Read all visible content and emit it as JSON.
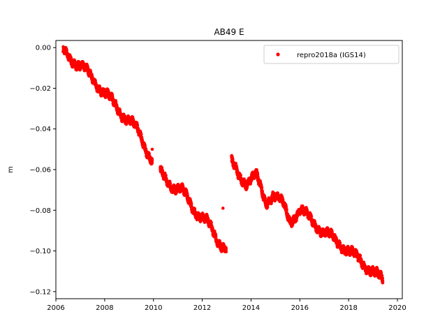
{
  "chart_data": {
    "type": "scatter",
    "title": "AB49 E",
    "xlabel": "",
    "ylabel": "m",
    "xlim": [
      2006.0,
      2020.2
    ],
    "ylim": [
      -0.1235,
      0.0035
    ],
    "xticks": [
      2006,
      2008,
      2010,
      2012,
      2014,
      2016,
      2018,
      2020
    ],
    "yticks": [
      0.0,
      -0.02,
      -0.04,
      -0.06,
      -0.08,
      -0.1,
      -0.12
    ],
    "ytick_labels": [
      "0.00",
      "−0.02",
      "−0.04",
      "−0.06",
      "−0.08",
      "−0.10",
      "−0.12"
    ],
    "grid": false,
    "legend": "top-right",
    "series": [
      {
        "name": "repro2018a (IGS14)",
        "color": "#ff0000",
        "marker": "dot",
        "trend_x": [
          2006.3,
          2006.8,
          2007.2,
          2007.7,
          2008.2,
          2008.6,
          2009.1,
          2009.4,
          2009.8,
          2010.3,
          2010.8,
          2011.2,
          2011.7,
          2012.2,
          2012.6,
          2013.0,
          2013.2,
          2013.5,
          2013.8,
          2014.2,
          2014.6,
          2014.9,
          2015.3,
          2015.6,
          2016.0,
          2016.5,
          2017.0,
          2017.5,
          2018.0,
          2018.5,
          2019.0,
          2019.4
        ],
        "trend_y": [
          -0.002,
          -0.007,
          -0.011,
          -0.018,
          -0.025,
          -0.031,
          -0.037,
          -0.042,
          -0.052,
          -0.062,
          -0.068,
          -0.071,
          -0.08,
          -0.086,
          -0.094,
          -0.099,
          -0.057,
          -0.063,
          -0.066,
          -0.063,
          -0.076,
          -0.072,
          -0.077,
          -0.085,
          -0.08,
          -0.085,
          -0.091,
          -0.095,
          -0.1,
          -0.105,
          -0.11,
          -0.115
        ],
        "gaps": [
          [
            2009.95,
            2010.28
          ],
          [
            2012.98,
            2013.2
          ]
        ],
        "isolated_points": [
          [
            2009.95,
            -0.05
          ],
          [
            2012.85,
            -0.079
          ]
        ]
      }
    ]
  }
}
